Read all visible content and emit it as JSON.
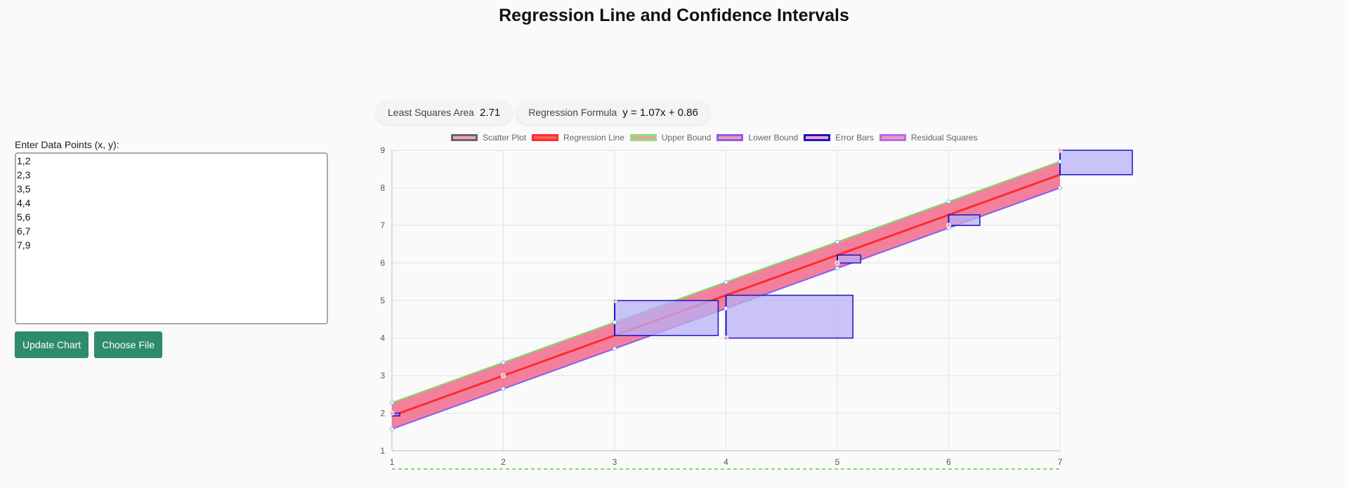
{
  "page": {
    "title": "Regression Line and Confidence Intervals"
  },
  "input": {
    "label": "Enter Data Points (x, y):",
    "value": "1,2\n2,3\n3,5\n4,4\n5,6\n6,7\n7,9"
  },
  "buttons": {
    "update_label": "Update Chart",
    "choose_file_label": "Choose File"
  },
  "stats": {
    "least_squares_label": "Least Squares Area",
    "least_squares_value": "2.71",
    "formula_label": "Regression Formula",
    "formula_value": "y = 1.07x + 0.86"
  },
  "legend": [
    {
      "label": "Scatter Plot",
      "fill": "#f7a3b4",
      "border": "#666666"
    },
    {
      "label": "Regression Line",
      "fill": "#ff5a5a",
      "border": "#ff2b2b"
    },
    {
      "label": "Upper Bound",
      "fill": "#f29aa8",
      "border": "#8fe07a"
    },
    {
      "label": "Lower Bound",
      "fill": "#f29aa8",
      "border": "#8a5cf0"
    },
    {
      "label": "Error Bars",
      "fill": "#f7a3c4",
      "border": "#1a13c8"
    },
    {
      "label": "Residual Squares",
      "fill": "#f29ab8",
      "border": "#b36be8"
    }
  ],
  "colors": {
    "band": "#f06a8c",
    "regression": "#ff2b2b",
    "upper": "#7ddc6a",
    "lower": "#8a5cf0",
    "square_fill": "#b8b0f5",
    "square_border": "#1a13c8",
    "grid": "#e3e3e3",
    "tick_text": "#555555",
    "dashed": "#7ddc6a"
  },
  "chart_data": {
    "type": "line",
    "title": "Regression Line and Confidence Intervals",
    "x_ticks": [
      1,
      2,
      3,
      4,
      5,
      6,
      7
    ],
    "y_ticks": [
      1,
      2,
      3,
      4,
      5,
      6,
      7,
      8,
      9
    ],
    "xlim": [
      1,
      7
    ],
    "ylim": [
      1,
      9
    ],
    "grid": true,
    "legend_position": "top",
    "regression": {
      "slope": 1.07,
      "intercept": 0.86
    },
    "band_halfwidth": 0.35,
    "points": [
      {
        "x": 1,
        "y": 2
      },
      {
        "x": 2,
        "y": 3
      },
      {
        "x": 3,
        "y": 5
      },
      {
        "x": 4,
        "y": 4
      },
      {
        "x": 5,
        "y": 6
      },
      {
        "x": 6,
        "y": 7
      },
      {
        "x": 7,
        "y": 9
      }
    ],
    "series": [
      {
        "name": "Scatter Plot"
      },
      {
        "name": "Regression Line"
      },
      {
        "name": "Upper Bound"
      },
      {
        "name": "Lower Bound"
      },
      {
        "name": "Error Bars"
      },
      {
        "name": "Residual Squares"
      }
    ]
  }
}
